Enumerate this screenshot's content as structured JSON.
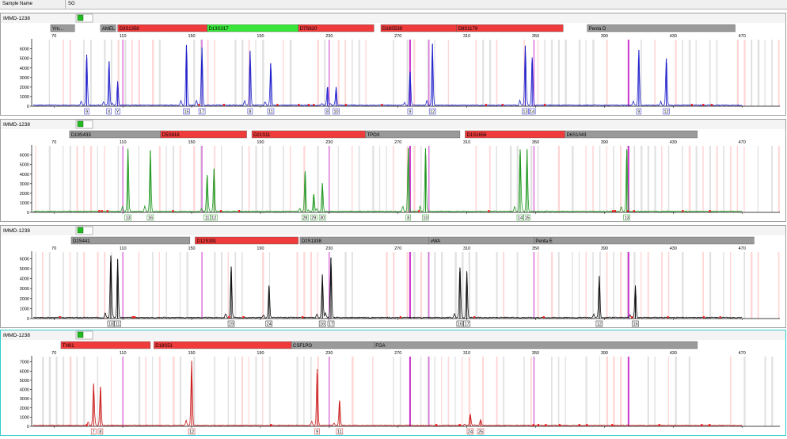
{
  "header": {
    "sample_name_label": "Sample Name",
    "sample_name_value": "SG"
  },
  "colors": {
    "marker_gray": "#9a9a9a",
    "marker_red": "#ef3b3b",
    "marker_green": "#39e639",
    "bin_gray": "#d9d9d9",
    "bin_pink": "#ffcccc",
    "magenta": "#cc33cc",
    "active_border": "#33cccc"
  },
  "chart_data": {
    "type": "line",
    "title": "",
    "x_ticks": [
      70,
      110,
      150,
      190,
      230,
      270,
      310,
      350,
      390,
      430,
      470
    ],
    "xlim": [
      57,
      492
    ],
    "panels": [
      {
        "sample": "IMMD-1238",
        "color": "#2222cc",
        "y_ticks": [
          0,
          1000,
          2000,
          3000,
          4000,
          5000,
          6000
        ],
        "ylim": [
          0,
          6800
        ],
        "active": false,
        "markers": [
          {
            "name": "Ym...",
            "start": 68,
            "end": 82,
            "color": "gray"
          },
          {
            "name": "AMEL",
            "start": 97,
            "end": 106,
            "color": "gray"
          },
          {
            "name": "D3S1358",
            "start": 107,
            "end": 159,
            "color": "red"
          },
          {
            "name": "D13S317",
            "start": 159,
            "end": 212,
            "color": "green"
          },
          {
            "name": "D7S820",
            "start": 212,
            "end": 256,
            "color": "red"
          },
          {
            "name": "D16S539",
            "start": 260,
            "end": 304,
            "color": "red"
          },
          {
            "name": "D8S1179",
            "start": 304,
            "end": 366,
            "color": "red"
          },
          {
            "name": "Penta D",
            "start": 380,
            "end": 466,
            "color": "gray"
          }
        ],
        "peaks": [
          {
            "x": 89,
            "h": 5400
          },
          {
            "x": 102,
            "h": 4700
          },
          {
            "x": 107,
            "h": 2500
          },
          {
            "x": 147,
            "h": 6400
          },
          {
            "x": 156,
            "h": 6100
          },
          {
            "x": 184,
            "h": 5700
          },
          {
            "x": 196,
            "h": 4500
          },
          {
            "x": 229,
            "h": 2000
          },
          {
            "x": 234,
            "h": 1900
          },
          {
            "x": 277,
            "h": 3600
          },
          {
            "x": 290,
            "h": 6500
          },
          {
            "x": 344,
            "h": 6300
          },
          {
            "x": 348,
            "h": 5100
          },
          {
            "x": 410,
            "h": 5900
          },
          {
            "x": 426,
            "h": 5000
          }
        ],
        "alleles": [
          {
            "x": 89,
            "label": "9"
          },
          {
            "x": 102,
            "label": "X"
          },
          {
            "x": 107,
            "label": "Y"
          },
          {
            "x": 147,
            "label": "15"
          },
          {
            "x": 156,
            "label": "17"
          },
          {
            "x": 184,
            "label": "8"
          },
          {
            "x": 196,
            "label": "11"
          },
          {
            "x": 229,
            "label": "8"
          },
          {
            "x": 234,
            "label": "10"
          },
          {
            "x": 277,
            "label": "9"
          },
          {
            "x": 290,
            "label": "12"
          },
          {
            "x": 344,
            "label": "13"
          },
          {
            "x": 348,
            "label": "14"
          },
          {
            "x": 410,
            "label": "9"
          },
          {
            "x": 426,
            "label": "12"
          }
        ]
      },
      {
        "sample": "IMMD-1238",
        "color": "#229922",
        "y_ticks": [
          0,
          1000,
          2000,
          3000,
          4000,
          5000,
          6000
        ],
        "ylim": [
          0,
          6800
        ],
        "active": false,
        "markers": [
          {
            "name": "D19S433",
            "start": 79,
            "end": 132,
            "color": "gray"
          },
          {
            "name": "D5S818",
            "start": 132,
            "end": 182,
            "color": "red"
          },
          {
            "name": "D21S11",
            "start": 185,
            "end": 251,
            "color": "red"
          },
          {
            "name": "TPOX",
            "start": 251,
            "end": 306,
            "color": "gray"
          },
          {
            "name": "D1S1656",
            "start": 309,
            "end": 367,
            "color": "red"
          },
          {
            "name": "D6S1043",
            "start": 367,
            "end": 444,
            "color": "gray"
          }
        ],
        "peaks": [
          {
            "x": 113,
            "h": 6600
          },
          {
            "x": 126,
            "h": 6500
          },
          {
            "x": 159,
            "h": 3900
          },
          {
            "x": 163,
            "h": 4500
          },
          {
            "x": 216,
            "h": 4300
          },
          {
            "x": 221,
            "h": 1900
          },
          {
            "x": 226,
            "h": 3000
          },
          {
            "x": 276,
            "h": 6700
          },
          {
            "x": 286,
            "h": 6700
          },
          {
            "x": 341,
            "h": 6600
          },
          {
            "x": 345,
            "h": 6500
          },
          {
            "x": 403,
            "h": 6600
          }
        ],
        "alleles": [
          {
            "x": 113,
            "label": "13"
          },
          {
            "x": 126,
            "label": "16"
          },
          {
            "x": 159,
            "label": "11"
          },
          {
            "x": 163,
            "label": "12"
          },
          {
            "x": 216,
            "label": "28"
          },
          {
            "x": 221,
            "label": "29"
          },
          {
            "x": 226,
            "label": "30"
          },
          {
            "x": 276,
            "label": "8"
          },
          {
            "x": 286,
            "label": "10"
          },
          {
            "x": 341,
            "label": "14"
          },
          {
            "x": 345,
            "label": "15"
          },
          {
            "x": 403,
            "label": "13"
          }
        ]
      },
      {
        "sample": "IMMD-1238",
        "color": "#111111",
        "y_ticks": [
          0,
          1000,
          2000,
          3000,
          4000,
          5000,
          6000
        ],
        "ylim": [
          0,
          6500
        ],
        "active": false,
        "markers": [
          {
            "name": "D2S441",
            "start": 80,
            "end": 149,
            "color": "gray"
          },
          {
            "name": "D12S391",
            "start": 152,
            "end": 212,
            "color": "red"
          },
          {
            "name": "D2S1338",
            "start": 213,
            "end": 288,
            "color": "gray"
          },
          {
            "name": "vWA",
            "start": 288,
            "end": 349,
            "color": "gray"
          },
          {
            "name": "Penta E",
            "start": 349,
            "end": 477,
            "color": "gray"
          }
        ],
        "peaks": [
          {
            "x": 103,
            "h": 6300
          },
          {
            "x": 107,
            "h": 5900
          },
          {
            "x": 173,
            "h": 5200
          },
          {
            "x": 195,
            "h": 3300
          },
          {
            "x": 226,
            "h": 4300
          },
          {
            "x": 231,
            "h": 6100
          },
          {
            "x": 306,
            "h": 5100
          },
          {
            "x": 310,
            "h": 4600
          },
          {
            "x": 387,
            "h": 4200
          },
          {
            "x": 408,
            "h": 3200
          }
        ],
        "alleles": [
          {
            "x": 103,
            "label": "10"
          },
          {
            "x": 107,
            "label": "11"
          },
          {
            "x": 173,
            "label": "19"
          },
          {
            "x": 195,
            "label": "24"
          },
          {
            "x": 226,
            "label": "16"
          },
          {
            "x": 231,
            "label": "17"
          },
          {
            "x": 306,
            "label": "16"
          },
          {
            "x": 310,
            "label": "17"
          },
          {
            "x": 387,
            "label": "12"
          },
          {
            "x": 408,
            "label": "16"
          }
        ]
      },
      {
        "sample": "IMMD-1238",
        "color": "#cc2222",
        "y_ticks": [
          0,
          1000,
          2000,
          3000,
          4000,
          5000,
          6000,
          7000
        ],
        "ylim": [
          0,
          7400
        ],
        "active": true,
        "markers": [
          {
            "name": "TH01",
            "start": 74,
            "end": 126,
            "color": "red"
          },
          {
            "name": "D18S51",
            "start": 128,
            "end": 208,
            "color": "red"
          },
          {
            "name": "CSF1PO",
            "start": 208,
            "end": 256,
            "color": "gray"
          },
          {
            "name": "FGA",
            "start": 256,
            "end": 444,
            "color": "gray"
          }
        ],
        "peaks": [
          {
            "x": 93,
            "h": 4500
          },
          {
            "x": 97,
            "h": 4300
          },
          {
            "x": 150,
            "h": 7100
          },
          {
            "x": 223,
            "h": 6200
          },
          {
            "x": 236,
            "h": 2800
          },
          {
            "x": 312,
            "h": 1300
          },
          {
            "x": 318,
            "h": 600
          }
        ],
        "alleles": [
          {
            "x": 93,
            "label": "7"
          },
          {
            "x": 97,
            "label": "8"
          },
          {
            "x": 150,
            "label": "12"
          },
          {
            "x": 223,
            "label": "9"
          },
          {
            "x": 236,
            "label": "11"
          },
          {
            "x": 312,
            "label": "24"
          },
          {
            "x": 318,
            "label": "25"
          }
        ]
      }
    ]
  }
}
